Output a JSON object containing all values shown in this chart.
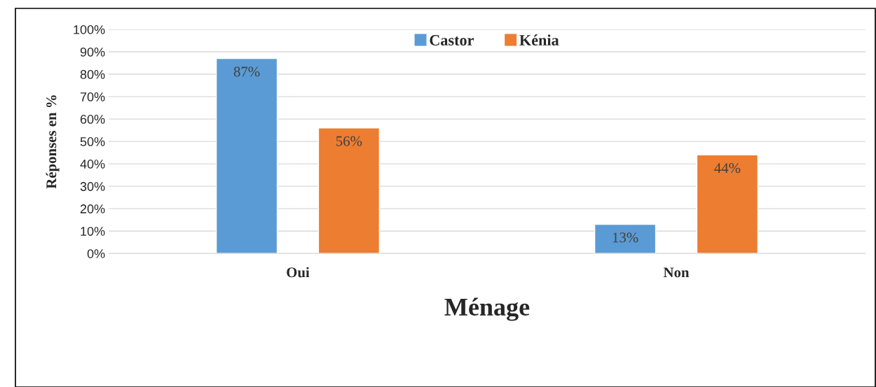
{
  "chart_data": {
    "type": "bar",
    "xlabel": "Ménage",
    "ylabel": "Réponses en %",
    "categories": [
      "Oui",
      "Non"
    ],
    "series": [
      {
        "name": "Castor",
        "color": "#5b9bd5",
        "values": [
          87,
          13
        ],
        "value_labels": [
          "87%",
          "13%"
        ]
      },
      {
        "name": "Kénia",
        "color": "#ed7d31",
        "values": [
          56,
          44
        ],
        "value_labels": [
          "56%",
          "44%"
        ]
      }
    ],
    "ylim": [
      0,
      100
    ],
    "yticks": [
      {
        "value": 0,
        "label": "0%"
      },
      {
        "value": 10,
        "label": "10%"
      },
      {
        "value": 20,
        "label": "20%"
      },
      {
        "value": 30,
        "label": "30%"
      },
      {
        "value": 40,
        "label": "40%"
      },
      {
        "value": 50,
        "label": "50%"
      },
      {
        "value": 60,
        "label": "60%"
      },
      {
        "value": 70,
        "label": "70%"
      },
      {
        "value": 80,
        "label": "80%"
      },
      {
        "value": 90,
        "label": "90%"
      },
      {
        "value": 100,
        "label": "100%"
      }
    ],
    "grid": "y",
    "legend": "top"
  }
}
